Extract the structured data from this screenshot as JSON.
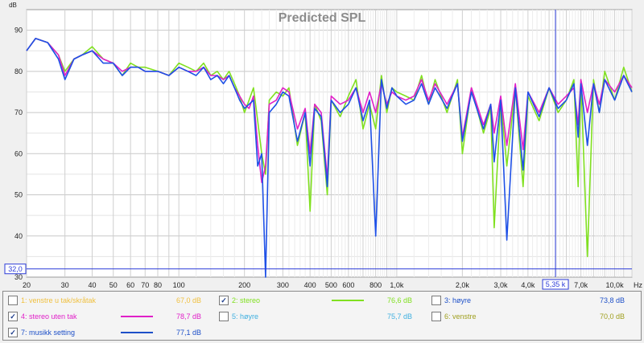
{
  "chart_data": {
    "type": "line",
    "title": "Predicted SPL",
    "ylabel": "dB",
    "x_unit": "Hz",
    "xscale": "log",
    "xlim": [
      20,
      12000
    ],
    "ylim": [
      30,
      95
    ],
    "grid": true,
    "y_ticks": [
      "90",
      "80",
      "70",
      "60",
      "50",
      "40",
      "30"
    ],
    "x_ticks": [
      "20",
      "30",
      "40",
      "50",
      "60",
      "70",
      "80",
      "100",
      "200",
      "300",
      "400",
      "500",
      "600",
      "800",
      "1,0k",
      "2,0k",
      "3,0k",
      "4,0k",
      "5,35 k",
      "7,0k",
      "10,0k",
      "Hz"
    ],
    "cursor": {
      "x_label": "5,35 k",
      "x": 5350,
      "y_label": "32,0",
      "y": 32.0
    },
    "series": [
      {
        "name": "2: stereo",
        "color": "#80e020",
        "x": [
          20,
          22,
          25,
          28,
          30,
          33,
          36,
          40,
          45,
          50,
          55,
          60,
          65,
          70,
          80,
          90,
          100,
          110,
          120,
          130,
          140,
          150,
          160,
          170,
          180,
          190,
          200,
          210,
          220,
          230,
          240,
          250,
          260,
          280,
          300,
          320,
          350,
          380,
          400,
          420,
          450,
          480,
          500,
          550,
          600,
          650,
          700,
          750,
          800,
          850,
          900,
          950,
          1000,
          1100,
          1200,
          1300,
          1400,
          1500,
          1700,
          1900,
          2000,
          2200,
          2500,
          2700,
          2800,
          3000,
          3200,
          3500,
          3800,
          4000,
          4500,
          5000,
          5500,
          6000,
          6500,
          6800,
          7000,
          7500,
          8000,
          8500,
          9000,
          10000,
          11000,
          12000
        ],
        "y": [
          85,
          88,
          87,
          84,
          80,
          83,
          84,
          86,
          83,
          82,
          79,
          82,
          81,
          81,
          80,
          79,
          82,
          81,
          80,
          82,
          79,
          80,
          78,
          80,
          77,
          74,
          70,
          73,
          76,
          68,
          60,
          55,
          73,
          75,
          74,
          76,
          62,
          70,
          46,
          72,
          68,
          50,
          73,
          69,
          74,
          78,
          66,
          72,
          66,
          79,
          70,
          76,
          75,
          74,
          73,
          79,
          72,
          78,
          70,
          78,
          60,
          76,
          65,
          71,
          42,
          73,
          57,
          76,
          52,
          74,
          68,
          76,
          70,
          73,
          78,
          52,
          78,
          35,
          78,
          70,
          80,
          73,
          81,
          75
        ]
      },
      {
        "name": "4: stereo uten tak",
        "color": "#e020c8",
        "x": [
          20,
          22,
          25,
          28,
          30,
          33,
          36,
          40,
          45,
          50,
          55,
          60,
          65,
          70,
          80,
          90,
          100,
          110,
          120,
          130,
          140,
          150,
          160,
          170,
          180,
          190,
          200,
          210,
          220,
          230,
          240,
          250,
          260,
          280,
          300,
          320,
          350,
          380,
          400,
          420,
          450,
          480,
          500,
          550,
          600,
          650,
          700,
          750,
          800,
          850,
          900,
          950,
          1000,
          1100,
          1200,
          1300,
          1400,
          1500,
          1700,
          1900,
          2000,
          2200,
          2500,
          2700,
          2800,
          3000,
          3200,
          3500,
          3800,
          4000,
          4500,
          5000,
          5500,
          6000,
          6500,
          6800,
          7000,
          7500,
          8000,
          8500,
          9000,
          10000,
          11000,
          12000
        ],
        "y": [
          85,
          88,
          87,
          84,
          79,
          83,
          84,
          85,
          83,
          82,
          80,
          81,
          81,
          80,
          80,
          79,
          81,
          80,
          80,
          81,
          79,
          79,
          78,
          79,
          76,
          74,
          72,
          71,
          74,
          62,
          53,
          57,
          72,
          73,
          76,
          75,
          66,
          71,
          60,
          72,
          70,
          54,
          74,
          72,
          73,
          76,
          70,
          75,
          70,
          77,
          72,
          75,
          74,
          73,
          74,
          78,
          73,
          77,
          72,
          77,
          64,
          76,
          67,
          72,
          65,
          74,
          62,
          77,
          61,
          75,
          70,
          76,
          72,
          74,
          76,
          67,
          78,
          70,
          77,
          72,
          78,
          75,
          79,
          76
        ]
      },
      {
        "name": "7: musikk setting",
        "color": "#1e50e6",
        "x": [
          20,
          22,
          25,
          28,
          30,
          33,
          36,
          40,
          45,
          50,
          55,
          60,
          65,
          70,
          80,
          90,
          100,
          110,
          120,
          130,
          140,
          150,
          160,
          170,
          180,
          190,
          200,
          210,
          220,
          230,
          240,
          250,
          260,
          280,
          300,
          320,
          350,
          380,
          400,
          420,
          450,
          480,
          500,
          550,
          600,
          650,
          700,
          750,
          800,
          850,
          900,
          950,
          1000,
          1100,
          1200,
          1300,
          1400,
          1500,
          1700,
          1900,
          2000,
          2200,
          2500,
          2700,
          2800,
          3000,
          3200,
          3500,
          3800,
          4000,
          4500,
          5000,
          5500,
          6000,
          6500,
          6800,
          7000,
          7500,
          8000,
          8500,
          9000,
          10000,
          11000,
          12000
        ],
        "y": [
          85,
          88,
          87,
          83,
          78,
          83,
          84,
          85,
          82,
          82,
          79,
          81,
          81,
          80,
          80,
          79,
          81,
          80,
          79,
          81,
          78,
          79,
          77,
          79,
          76,
          73,
          71,
          72,
          73,
          57,
          60,
          30,
          70,
          72,
          75,
          74,
          63,
          70,
          57,
          71,
          69,
          52,
          73,
          70,
          72,
          76,
          68,
          73,
          40,
          78,
          71,
          76,
          74,
          72,
          73,
          77,
          72,
          76,
          71,
          77,
          63,
          75,
          66,
          72,
          58,
          73,
          39,
          76,
          56,
          75,
          69,
          76,
          71,
          73,
          77,
          64,
          77,
          62,
          77,
          70,
          78,
          73,
          79,
          75
        ]
      }
    ]
  },
  "legend": {
    "items": [
      {
        "label": "1: venstre u tak/skråtak",
        "value": "67,0 dB",
        "checked": false,
        "color": "#f0c040"
      },
      {
        "label": "2: stereo",
        "value": "76,6 dB",
        "checked": true,
        "color": "#80e020"
      },
      {
        "label": "3: høyre",
        "value": "73,8 dB",
        "checked": false,
        "color": "#1e50c8"
      },
      {
        "label": "4: stereo uten tak",
        "value": "78,7 dB",
        "checked": true,
        "color": "#e020c8"
      },
      {
        "label": "5: høyre",
        "value": "75,7 dB",
        "checked": false,
        "color": "#40b0e0"
      },
      {
        "label": "6: venstre",
        "value": "70,0 dB",
        "checked": false,
        "color": "#a0a020"
      },
      {
        "label": "7: musikk setting",
        "value": "77,1 dB",
        "checked": true,
        "color": "#1e50c8"
      }
    ],
    "check_mark": "✓"
  }
}
